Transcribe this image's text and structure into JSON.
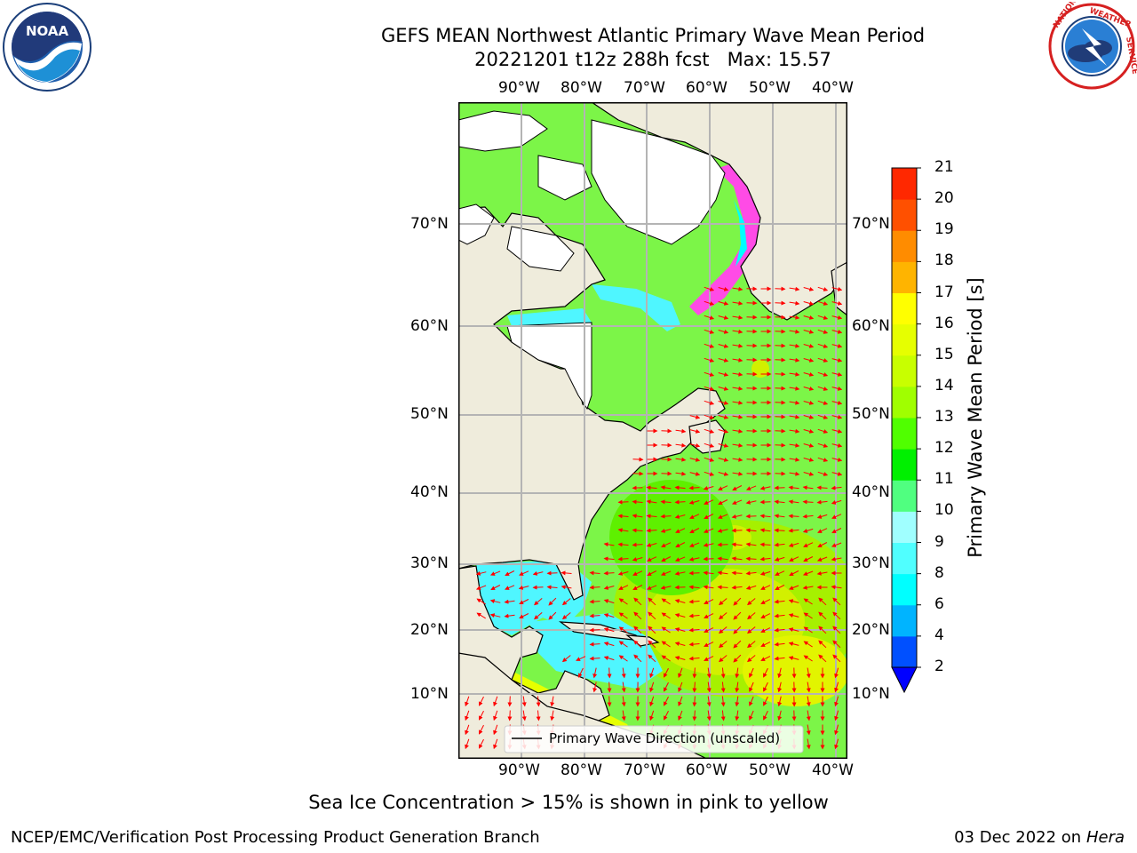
{
  "title": {
    "line1": "GEFS MEAN Northwest Atlantic Primary Wave Mean Period",
    "line2": "20221201 t12z 288h fcst   Max: 15.57"
  },
  "logos": {
    "left": {
      "text": "NOAA",
      "ring_text": "NATIONAL OCEANIC AND ATMOSPHERIC ADMINISTRATION · U.S. DEPARTMENT OF COMMERCE"
    },
    "right": {
      "ring_text": "NATIONAL WEATHER SERVICE"
    }
  },
  "map": {
    "lon_ticks": [
      "90°W",
      "80°W",
      "70°W",
      "60°W",
      "50°W",
      "40°W"
    ],
    "lat_ticks": [
      "70°N",
      "60°N",
      "50°N",
      "40°N",
      "30°N",
      "20°N",
      "10°N"
    ],
    "legend": "Primary Wave Direction (unscaled)",
    "colors": {
      "land": "#efecdc",
      "ice": "#ffffff",
      "grid": "#b4b4b4",
      "arrow": "#ff0000"
    }
  },
  "colorbar": {
    "label": "Primary Wave Mean Period [s]",
    "levels": [
      "2",
      "4",
      "6",
      "8",
      "9",
      "10",
      "11",
      "12",
      "13",
      "14",
      "15",
      "16",
      "17",
      "18",
      "19",
      "20",
      "21"
    ],
    "colors": [
      "#0050ff",
      "#00b4ff",
      "#00ffff",
      "#50ffff",
      "#a0ffff",
      "#50ff80",
      "#00f000",
      "#50ff00",
      "#a0ff00",
      "#c8ff00",
      "#e6ff00",
      "#ffff00",
      "#ffb400",
      "#ff8c00",
      "#ff5000",
      "#ff2800",
      "#ff0000"
    ],
    "under_color": "#0000ff"
  },
  "note": "Sea Ice Concentration > 15% is shown in pink to yellow",
  "footer": {
    "left": "NCEP/EMC/Verification Post Processing Product Generation Branch",
    "right_date": "03 Dec 2022 on",
    "right_host": "Hera"
  }
}
